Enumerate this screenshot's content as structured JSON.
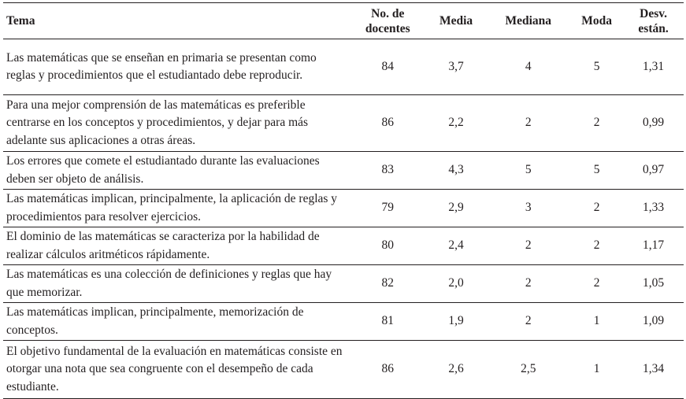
{
  "table": {
    "headers": {
      "tema": "Tema",
      "docentes": [
        "No. de",
        "docentes"
      ],
      "media": "Media",
      "mediana": "Mediana",
      "moda": "Moda",
      "desv": [
        "Desv.",
        "están."
      ]
    },
    "rows": [
      {
        "tema": "Las matemáticas que se enseñan en primaria se presentan como reglas y procedimientos que el estudiantado debe reproducir.",
        "docentes": "84",
        "media": "3,7",
        "mediana": "4",
        "moda": "5",
        "desv": "1,31"
      },
      {
        "tema": "Para una mejor comprensión de las matemáticas es preferible centrarse en los conceptos y procedimientos, y dejar para más adelante sus aplicaciones a otras áreas.",
        "docentes": "86",
        "media": "2,2",
        "mediana": "2",
        "moda": "2",
        "desv": "0,99"
      },
      {
        "tema": "Los errores que comete el estudiantado durante las evaluaciones deben ser objeto de análisis.",
        "docentes": "83",
        "media": "4,3",
        "mediana": "5",
        "moda": "5",
        "desv": "0,97"
      },
      {
        "tema": "Las matemáticas implican, principalmente, la aplicación de reglas y procedimientos para resolver ejercicios.",
        "docentes": "79",
        "media": "2,9",
        "mediana": "3",
        "moda": "2",
        "desv": "1,33"
      },
      {
        "tema": "El dominio de las matemáticas se caracteriza por la habilidad de realizar cálculos aritméticos rápidamente.",
        "docentes": "80",
        "media": "2,4",
        "mediana": "2",
        "moda": "2",
        "desv": "1,17"
      },
      {
        "tema": "Las matemáticas es una colección de definiciones y reglas que hay que memorizar.",
        "docentes": "82",
        "media": "2,0",
        "mediana": "2",
        "moda": "2",
        "desv": "1,05"
      },
      {
        "tema": "Las matemáticas implican, principalmente, memorización de conceptos.",
        "docentes": "81",
        "media": "1,9",
        "mediana": "2",
        "moda": "1",
        "desv": "1,09"
      },
      {
        "tema": "El objetivo fundamental de la evaluación en matemáticas consiste en otorgar una nota que sea congruente con el desempeño de cada estudiante.",
        "docentes": "86",
        "media": "2,6",
        "mediana": "2,5",
        "moda": "1",
        "desv": "1,34"
      }
    ]
  }
}
